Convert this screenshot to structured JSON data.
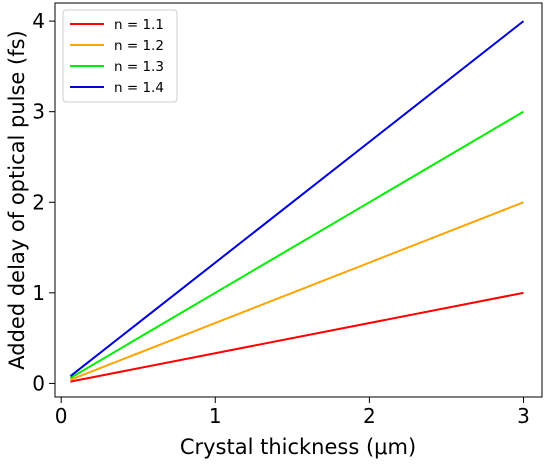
{
  "chart_data": {
    "type": "line",
    "title": "",
    "xlabel": "Crystal thickness (μm)",
    "ylabel": "Added delay of optical pulse (fs)",
    "xlim": [
      -0.04,
      3.12
    ],
    "ylim": [
      -0.15,
      4.2
    ],
    "x_ticks": [
      0,
      1,
      2,
      3
    ],
    "y_ticks": [
      0,
      1,
      2,
      3,
      4
    ],
    "grid": false,
    "legend_position": "upper-left",
    "series": [
      {
        "name": "n = 1.1",
        "color": "#ff0000",
        "x": [
          0.06,
          3.0
        ],
        "y": [
          0.02,
          1.0
        ]
      },
      {
        "name": "n = 1.2",
        "color": "#ffa500",
        "x": [
          0.06,
          3.0
        ],
        "y": [
          0.04,
          2.0
        ]
      },
      {
        "name": "n = 1.3",
        "color": "#00ee00",
        "x": [
          0.06,
          3.0
        ],
        "y": [
          0.06,
          3.0
        ]
      },
      {
        "name": "n = 1.4",
        "color": "#0000dd",
        "x": [
          0.06,
          3.0
        ],
        "y": [
          0.08,
          4.0
        ]
      }
    ]
  }
}
